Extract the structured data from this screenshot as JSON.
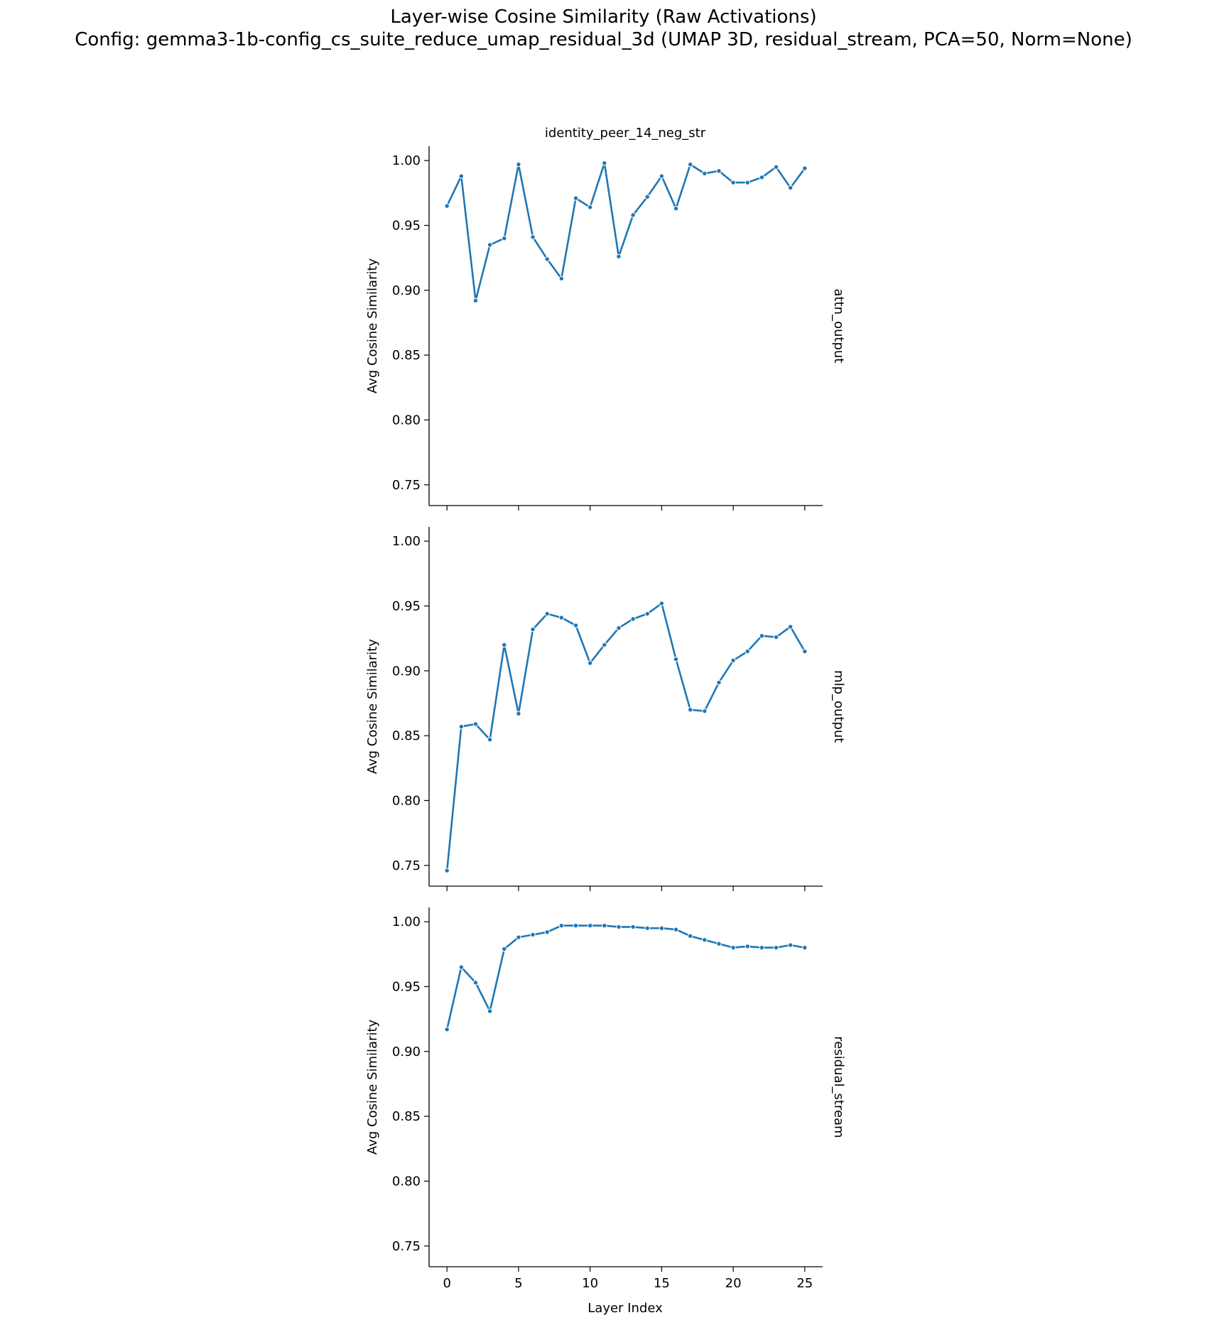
{
  "figure": {
    "title": "Layer-wise Cosine Similarity (Raw Activations)",
    "subtitle": "Config: gemma3-1b-config_cs_suite_reduce_umap_residual_3d (UMAP 3D, residual_stream, PCA=50, Norm=None)",
    "column_title": "identity_peer_14_neg_str",
    "xlabel": "Layer Index",
    "ylabel": "Avg Cosine Similarity",
    "line_color": "#1f77b4"
  },
  "chart_data": [
    {
      "type": "line",
      "row_label": "attn_output",
      "x": [
        0,
        1,
        2,
        3,
        4,
        5,
        6,
        7,
        8,
        9,
        10,
        11,
        12,
        13,
        14,
        15,
        16,
        17,
        18,
        19,
        20,
        21,
        22,
        23,
        24,
        25
      ],
      "y": [
        0.965,
        0.988,
        0.892,
        0.935,
        0.94,
        0.997,
        0.941,
        0.924,
        0.909,
        0.971,
        0.964,
        0.998,
        0.926,
        0.958,
        0.972,
        0.988,
        0.963,
        0.997,
        0.99,
        0.992,
        0.983,
        0.983,
        0.987,
        0.995,
        0.979,
        0.994
      ],
      "xlim": [
        -1.25,
        26.25
      ],
      "ylim": [
        0.734,
        1.011
      ],
      "xticks": [
        0,
        5,
        10,
        15,
        20,
        25
      ],
      "yticks": [
        0.75,
        0.8,
        0.85,
        0.9,
        0.95,
        1.0
      ],
      "ytick_labels": [
        "0.75",
        "0.80",
        "0.85",
        "0.90",
        "0.95",
        "1.00"
      ]
    },
    {
      "type": "line",
      "row_label": "mlp_output",
      "x": [
        0,
        1,
        2,
        3,
        4,
        5,
        6,
        7,
        8,
        9,
        10,
        11,
        12,
        13,
        14,
        15,
        16,
        17,
        18,
        19,
        20,
        21,
        22,
        23,
        24,
        25
      ],
      "y": [
        0.746,
        0.857,
        0.859,
        0.847,
        0.92,
        0.867,
        0.932,
        0.944,
        0.941,
        0.935,
        0.906,
        0.92,
        0.933,
        0.94,
        0.944,
        0.952,
        0.909,
        0.87,
        0.869,
        0.891,
        0.908,
        0.915,
        0.927,
        0.926,
        0.934,
        0.915
      ],
      "xlim": [
        -1.25,
        26.25
      ],
      "ylim": [
        0.734,
        1.011
      ],
      "xticks": [
        0,
        5,
        10,
        15,
        20,
        25
      ],
      "yticks": [
        0.75,
        0.8,
        0.85,
        0.9,
        0.95,
        1.0
      ],
      "ytick_labels": [
        "0.75",
        "0.80",
        "0.85",
        "0.90",
        "0.95",
        "1.00"
      ]
    },
    {
      "type": "line",
      "row_label": "residual_stream",
      "x": [
        0,
        1,
        2,
        3,
        4,
        5,
        6,
        7,
        8,
        9,
        10,
        11,
        12,
        13,
        14,
        15,
        16,
        17,
        18,
        19,
        20,
        21,
        22,
        23,
        24,
        25
      ],
      "y": [
        0.917,
        0.965,
        0.953,
        0.931,
        0.979,
        0.988,
        0.99,
        0.992,
        0.997,
        0.997,
        0.997,
        0.997,
        0.996,
        0.996,
        0.995,
        0.995,
        0.994,
        0.989,
        0.986,
        0.983,
        0.98,
        0.981,
        0.98,
        0.98,
        0.982,
        0.98
      ],
      "xlim": [
        -1.25,
        26.25
      ],
      "ylim": [
        0.734,
        1.011
      ],
      "xticks": [
        0,
        5,
        10,
        15,
        20,
        25
      ],
      "xtick_labels": [
        "0",
        "5",
        "10",
        "15",
        "20",
        "25"
      ],
      "yticks": [
        0.75,
        0.8,
        0.85,
        0.9,
        0.95,
        1.0
      ],
      "ytick_labels": [
        "0.75",
        "0.80",
        "0.85",
        "0.90",
        "0.95",
        "1.00"
      ]
    }
  ]
}
